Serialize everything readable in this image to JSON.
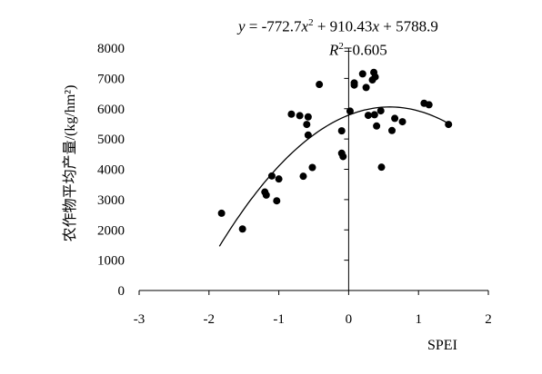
{
  "chart_data": {
    "type": "scatter",
    "xlabel": "SPEI",
    "ylabel": "农作物平均产量/(kg/hm²)",
    "xlim": [
      -3,
      2
    ],
    "ylim": [
      0,
      8000
    ],
    "xticks": [
      -3,
      -2,
      -1,
      0,
      1,
      2
    ],
    "yticks": [
      0,
      1000,
      2000,
      3000,
      4000,
      5000,
      6000,
      7000,
      8000
    ],
    "annotation": {
      "equation": "y = -772.7x² + 910.43x + 5788.9",
      "r_squared": "R²=0.605"
    },
    "trendline": {
      "type": "polynomial",
      "order": 2,
      "coefficients": [
        -772.7,
        910.43,
        5788.9
      ],
      "x_range": [
        -1.85,
        1.4
      ]
    },
    "points": [
      {
        "x": -1.82,
        "y": 2550
      },
      {
        "x": -1.52,
        "y": 2030
      },
      {
        "x": -1.2,
        "y": 3250
      },
      {
        "x": -1.18,
        "y": 3150
      },
      {
        "x": -1.1,
        "y": 3780
      },
      {
        "x": -1.03,
        "y": 2960
      },
      {
        "x": -1.0,
        "y": 3680
      },
      {
        "x": -0.82,
        "y": 5820
      },
      {
        "x": -0.7,
        "y": 5770
      },
      {
        "x": -0.65,
        "y": 3770
      },
      {
        "x": -0.6,
        "y": 5480
      },
      {
        "x": -0.58,
        "y": 5730
      },
      {
        "x": -0.58,
        "y": 5130
      },
      {
        "x": -0.52,
        "y": 4060
      },
      {
        "x": -0.42,
        "y": 6800
      },
      {
        "x": -0.1,
        "y": 5270
      },
      {
        "x": -0.1,
        "y": 4530
      },
      {
        "x": -0.08,
        "y": 4420
      },
      {
        "x": 0.02,
        "y": 5920
      },
      {
        "x": 0.08,
        "y": 6850
      },
      {
        "x": 0.08,
        "y": 6780
      },
      {
        "x": 0.2,
        "y": 7150
      },
      {
        "x": 0.25,
        "y": 6700
      },
      {
        "x": 0.28,
        "y": 5780
      },
      {
        "x": 0.34,
        "y": 6950
      },
      {
        "x": 0.36,
        "y": 7200
      },
      {
        "x": 0.37,
        "y": 5800
      },
      {
        "x": 0.38,
        "y": 7050
      },
      {
        "x": 0.4,
        "y": 5430
      },
      {
        "x": 0.46,
        "y": 5930
      },
      {
        "x": 0.47,
        "y": 4070
      },
      {
        "x": 0.62,
        "y": 5280
      },
      {
        "x": 0.66,
        "y": 5680
      },
      {
        "x": 0.77,
        "y": 5570
      },
      {
        "x": 1.08,
        "y": 6180
      },
      {
        "x": 1.15,
        "y": 6130
      },
      {
        "x": 1.43,
        "y": 5480
      }
    ]
  }
}
